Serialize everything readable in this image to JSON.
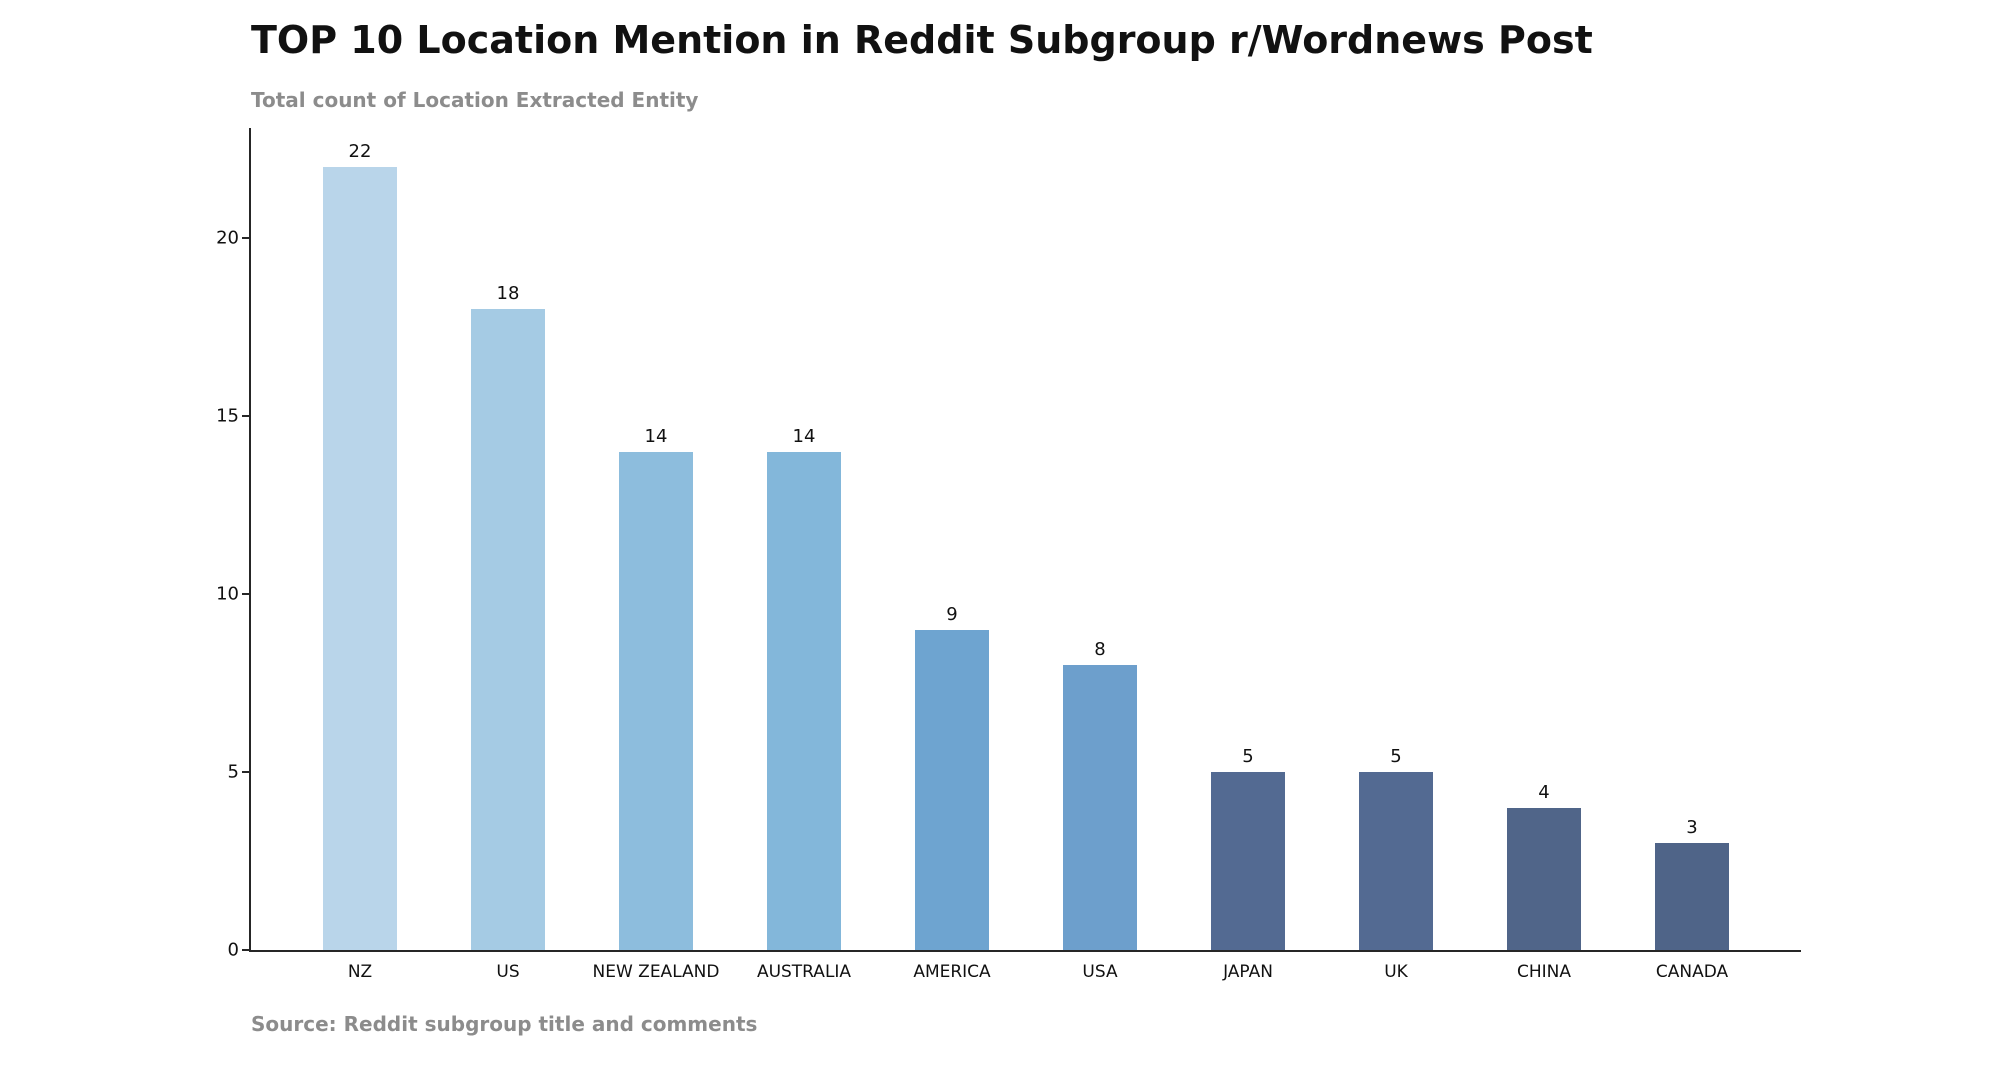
{
  "chart_data": {
    "type": "bar",
    "title": "TOP 10 Location Mention in Reddit Subgroup r/Wordnews Post",
    "subtitle": "Total count of Location Extracted Entity",
    "source": "Source: Reddit subgroup title and comments",
    "categories": [
      "NZ",
      "US",
      "NEW ZEALAND",
      "AUSTRALIA",
      "AMERICA",
      "USA",
      "JAPAN",
      "UK",
      "CHINA",
      "CANADA"
    ],
    "values": [
      22,
      18,
      14,
      14,
      9,
      8,
      5,
      5,
      4,
      3
    ],
    "bar_colors": [
      "#b9d5ea",
      "#a5cbe4",
      "#8dbddd",
      "#83b7da",
      "#6ea4d0",
      "#6d9fcc",
      "#536a92",
      "#536a92",
      "#506589",
      "#4f6488"
    ],
    "yticks": [
      0,
      5,
      10,
      15,
      20
    ],
    "ylim": [
      0,
      23.1
    ],
    "xlabel": "",
    "ylabel": "",
    "grid": false,
    "legend_position": "none",
    "axis_color": "#262626",
    "text_color": "#111111",
    "muted_text_color": "#8c8c8c"
  }
}
